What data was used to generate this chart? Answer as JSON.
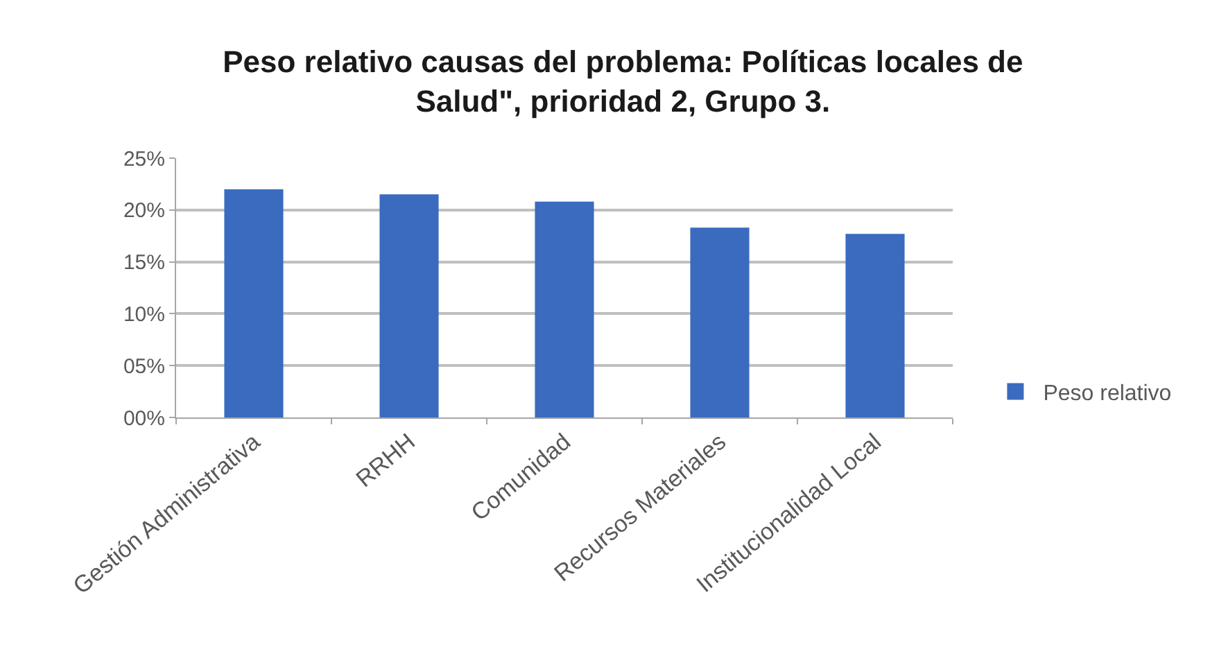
{
  "chart_data": {
    "type": "bar",
    "title": "Peso relativo causas del problema: Políticas locales de Salud\", prioridad 2, Grupo 3.",
    "categories": [
      "Gestión Administrativa",
      "RRHH",
      "Comunidad",
      "Recursos Materiales",
      "Institucionalidad Local"
    ],
    "series": [
      {
        "name": "Peso relativo",
        "color": "#3a6bbf",
        "values": [
          22,
          21.5,
          20.8,
          18.3,
          17.7
        ]
      }
    ],
    "ylim": [
      0,
      25
    ],
    "yticks": [
      {
        "value": 0,
        "label": "00%"
      },
      {
        "value": 5,
        "label": "05%"
      },
      {
        "value": 10,
        "label": "10%"
      },
      {
        "value": 15,
        "label": "15%"
      },
      {
        "value": 20,
        "label": "20%"
      },
      {
        "value": 25,
        "label": "25%"
      }
    ],
    "grid": "y",
    "legend": "right"
  }
}
